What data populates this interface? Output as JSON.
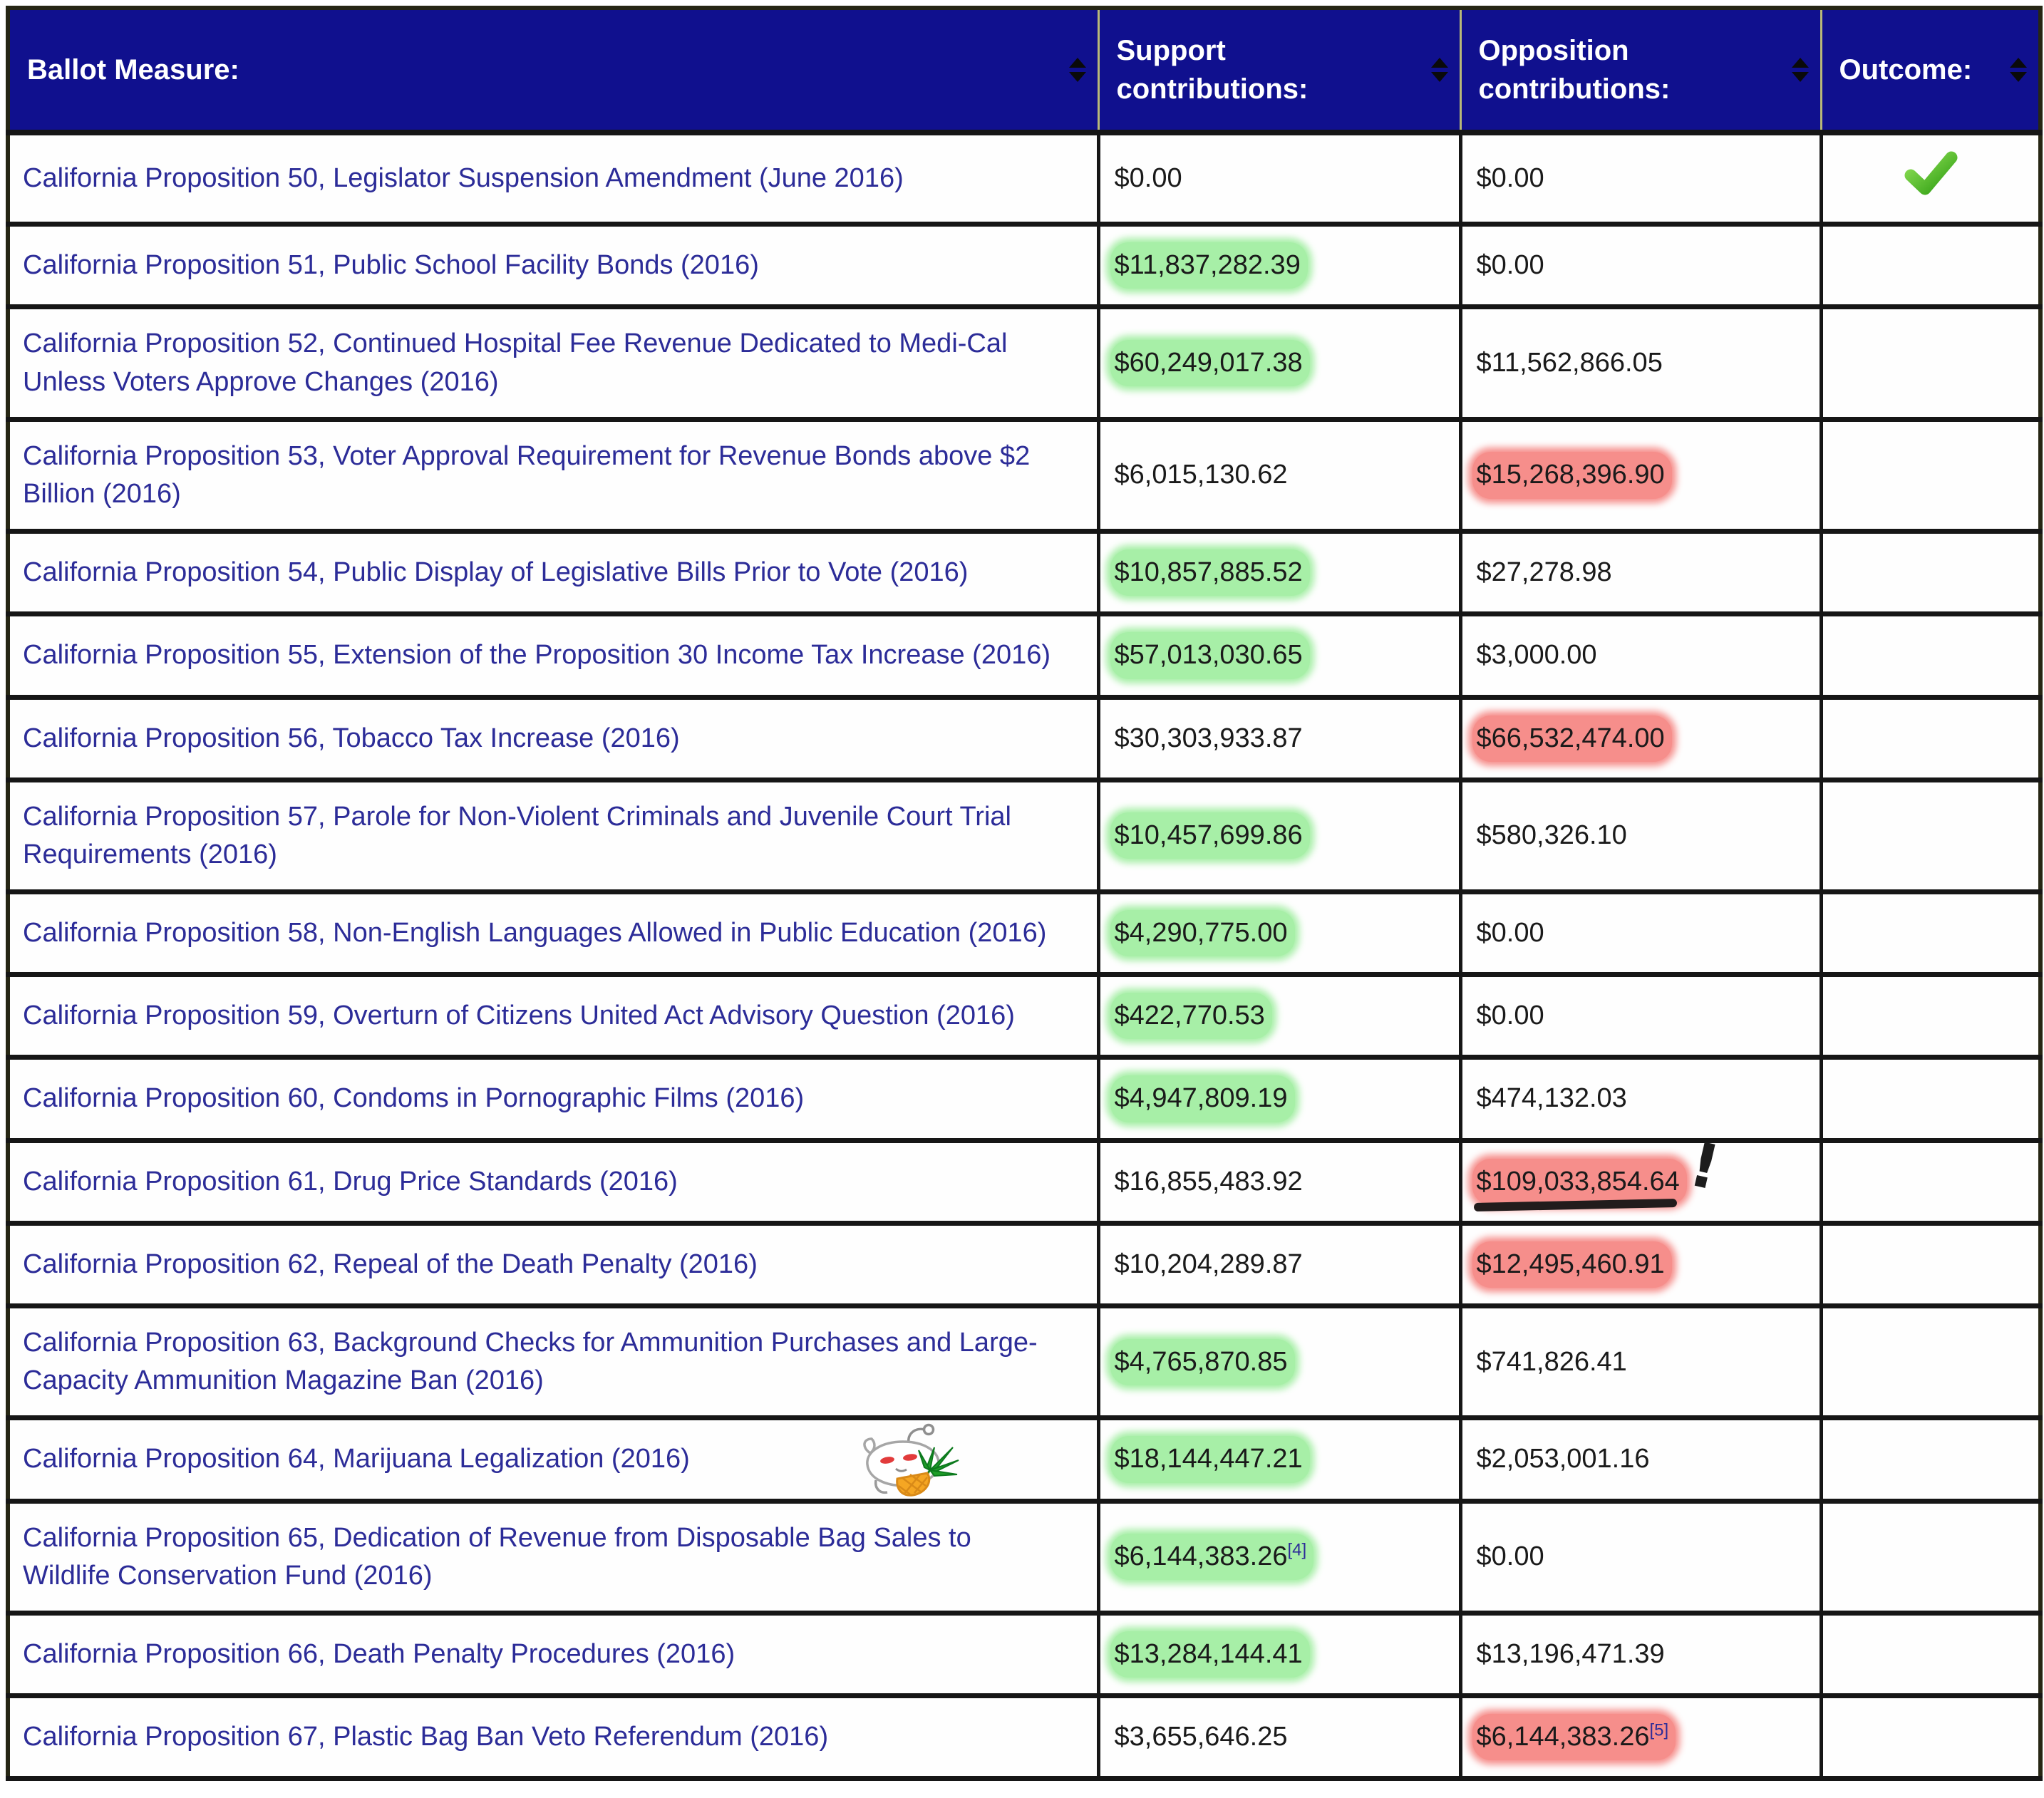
{
  "colors": {
    "header_bg": "#10108e",
    "link_blue": "#2c2c98",
    "green_highlight": "#a7efa7",
    "red_highlight": "#f68e8b",
    "check_green": "#3fae1f",
    "grid_border": "#161616"
  },
  "icons": {
    "sort": "sort-updown-arrows",
    "outcome_approved": "green-checkmark",
    "prop64_sticker": "reddit-snoo-with-cannabis-leaf-and-carrot",
    "annotation_marks": "red-highlight-black-underline-exclamation"
  },
  "annotations": {
    "prop61_exclamation_text": "!"
  },
  "table": {
    "columns": [
      {
        "id": "measure",
        "label": "Ballot Measure:"
      },
      {
        "id": "support",
        "label": "Support contributions:"
      },
      {
        "id": "opposition",
        "label": "Opposition contributions:"
      },
      {
        "id": "outcome",
        "label": "Outcome:"
      }
    ],
    "rows": [
      {
        "measure": "California Proposition 50, Legislator Suspension Amendment (June 2016)",
        "support": "$0.00",
        "support_highlight": null,
        "support_footnote": null,
        "opposition": "$0.00",
        "opposition_highlight": null,
        "opposition_footnote": null,
        "opposition_annotated": false,
        "outcome": "approved",
        "sticker": false
      },
      {
        "measure": "California Proposition 51, Public School Facility Bonds (2016)",
        "support": "$11,837,282.39",
        "support_highlight": "green",
        "support_footnote": null,
        "opposition": "$0.00",
        "opposition_highlight": null,
        "opposition_footnote": null,
        "opposition_annotated": false,
        "outcome": "",
        "sticker": false
      },
      {
        "measure": "California Proposition 52, Continued Hospital Fee Revenue Dedicated to Medi-Cal Unless Voters Approve Changes (2016)",
        "support": "$60,249,017.38",
        "support_highlight": "green",
        "support_footnote": null,
        "opposition": "$11,562,866.05",
        "opposition_highlight": null,
        "opposition_footnote": null,
        "opposition_annotated": false,
        "outcome": "",
        "sticker": false
      },
      {
        "measure": "California Proposition 53, Voter Approval Requirement for Revenue Bonds above $2 Billion (2016)",
        "support": "$6,015,130.62",
        "support_highlight": null,
        "support_footnote": null,
        "opposition": "$15,268,396.90",
        "opposition_highlight": "red",
        "opposition_footnote": null,
        "opposition_annotated": false,
        "outcome": "",
        "sticker": false
      },
      {
        "measure": "California Proposition 54, Public Display of Legislative Bills Prior to Vote (2016)",
        "support": "$10,857,885.52",
        "support_highlight": "green",
        "support_footnote": null,
        "opposition": "$27,278.98",
        "opposition_highlight": null,
        "opposition_footnote": null,
        "opposition_annotated": false,
        "outcome": "",
        "sticker": false
      },
      {
        "measure": "California Proposition 55, Extension of the Proposition 30 Income Tax Increase (2016)",
        "support": "$57,013,030.65",
        "support_highlight": "green",
        "support_footnote": null,
        "opposition": "$3,000.00",
        "opposition_highlight": null,
        "opposition_footnote": null,
        "opposition_annotated": false,
        "outcome": "",
        "sticker": false
      },
      {
        "measure": "California Proposition 56, Tobacco Tax Increase (2016)",
        "support": "$30,303,933.87",
        "support_highlight": null,
        "support_footnote": null,
        "opposition": "$66,532,474.00",
        "opposition_highlight": "red",
        "opposition_footnote": null,
        "opposition_annotated": false,
        "outcome": "",
        "sticker": false
      },
      {
        "measure": "California Proposition 57, Parole for Non-Violent Criminals and Juvenile Court Trial Requirements (2016)",
        "support": "$10,457,699.86",
        "support_highlight": "green",
        "support_footnote": null,
        "opposition": "$580,326.10",
        "opposition_highlight": null,
        "opposition_footnote": null,
        "opposition_annotated": false,
        "outcome": "",
        "sticker": false
      },
      {
        "measure": "California Proposition 58, Non-English Languages Allowed in Public Education (2016)",
        "support": "$4,290,775.00",
        "support_highlight": "green",
        "support_footnote": null,
        "opposition": "$0.00",
        "opposition_highlight": null,
        "opposition_footnote": null,
        "opposition_annotated": false,
        "outcome": "",
        "sticker": false
      },
      {
        "measure": "California Proposition 59, Overturn of Citizens United Act Advisory Question (2016)",
        "support": "$422,770.53",
        "support_highlight": "green",
        "support_footnote": null,
        "opposition": "$0.00",
        "opposition_highlight": null,
        "opposition_footnote": null,
        "opposition_annotated": false,
        "outcome": "",
        "sticker": false
      },
      {
        "measure": "California Proposition 60, Condoms in Pornographic Films (2016)",
        "support": "$4,947,809.19",
        "support_highlight": "green",
        "support_footnote": null,
        "opposition": "$474,132.03",
        "opposition_highlight": null,
        "opposition_footnote": null,
        "opposition_annotated": false,
        "outcome": "",
        "sticker": false
      },
      {
        "measure": "California Proposition 61, Drug Price Standards (2016)",
        "support": "$16,855,483.92",
        "support_highlight": null,
        "support_footnote": null,
        "opposition": "$109,033,854.64",
        "opposition_highlight": "red",
        "opposition_footnote": null,
        "opposition_annotated": true,
        "outcome": "",
        "sticker": false
      },
      {
        "measure": "California Proposition 62, Repeal of the Death Penalty (2016)",
        "support": "$10,204,289.87",
        "support_highlight": null,
        "support_footnote": null,
        "opposition": "$12,495,460.91",
        "opposition_highlight": "red",
        "opposition_footnote": null,
        "opposition_annotated": false,
        "outcome": "",
        "sticker": false
      },
      {
        "measure": "California Proposition 63, Background Checks for Ammunition Purchases and Large-Capacity Ammunition Magazine Ban (2016)",
        "support": "$4,765,870.85",
        "support_highlight": "green",
        "support_footnote": null,
        "opposition": "$741,826.41",
        "opposition_highlight": null,
        "opposition_footnote": null,
        "opposition_annotated": false,
        "outcome": "",
        "sticker": false
      },
      {
        "measure": "California Proposition 64, Marijuana Legalization (2016)",
        "support": "$18,144,447.21",
        "support_highlight": "green",
        "support_footnote": null,
        "opposition": "$2,053,001.16",
        "opposition_highlight": null,
        "opposition_footnote": null,
        "opposition_annotated": false,
        "outcome": "",
        "sticker": true
      },
      {
        "measure": "California Proposition 65, Dedication of Revenue from Disposable Bag Sales to Wildlife Conservation Fund (2016)",
        "support": "$6,144,383.26",
        "support_highlight": "green",
        "support_footnote": "[4]",
        "opposition": "$0.00",
        "opposition_highlight": null,
        "opposition_footnote": null,
        "opposition_annotated": false,
        "outcome": "",
        "sticker": false
      },
      {
        "measure": "California Proposition 66, Death Penalty Procedures (2016)",
        "support": "$13,284,144.41",
        "support_highlight": "green",
        "support_footnote": null,
        "opposition": "$13,196,471.39",
        "opposition_highlight": null,
        "opposition_footnote": null,
        "opposition_annotated": false,
        "outcome": "",
        "sticker": false
      },
      {
        "measure": "California Proposition 67, Plastic Bag Ban Veto Referendum (2016)",
        "support": "$3,655,646.25",
        "support_highlight": null,
        "support_footnote": null,
        "opposition": "$6,144,383.26",
        "opposition_highlight": "red",
        "opposition_footnote": "[5]",
        "opposition_annotated": false,
        "outcome": "",
        "sticker": false
      }
    ]
  }
}
